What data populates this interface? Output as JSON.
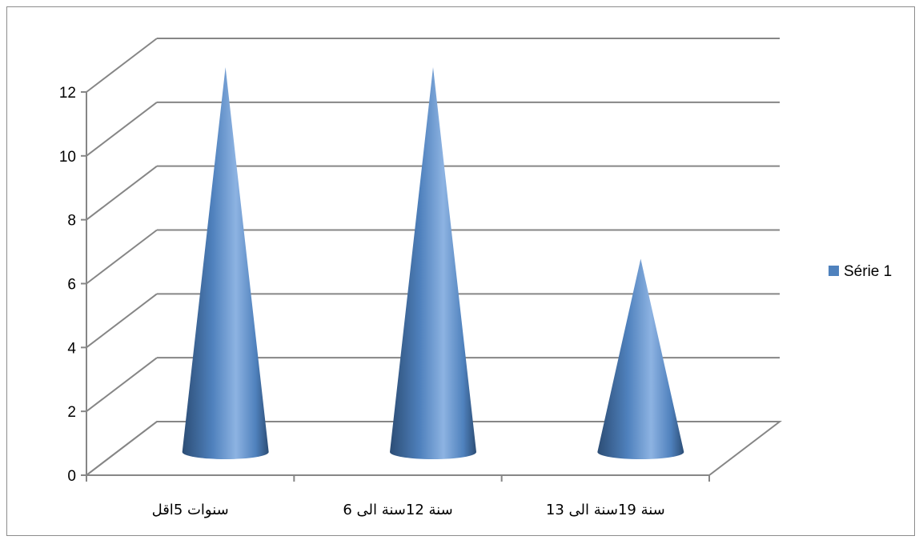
{
  "chart_data": {
    "type": "bar",
    "style": "3d-cone",
    "categories": [
      "سنوات 5اقل",
      "سنة 12سنة الى 6",
      "سنة 19سنة الى 13"
    ],
    "series": [
      {
        "name": "Série 1",
        "values": [
          12,
          12,
          6
        ]
      }
    ],
    "ylim": [
      0,
      12
    ],
    "yticks": [
      0,
      2,
      4,
      6,
      8,
      10,
      12
    ],
    "ytick_labels": [
      "0",
      "2",
      "4",
      "6",
      "8",
      "10",
      "12"
    ],
    "grid": true,
    "legend": "right",
    "colors": {
      "series": "#4f81bd",
      "series_light": "#8db3e2",
      "series_dark": "#2c4d75",
      "grid": "#868686",
      "axis": "#868686"
    }
  }
}
